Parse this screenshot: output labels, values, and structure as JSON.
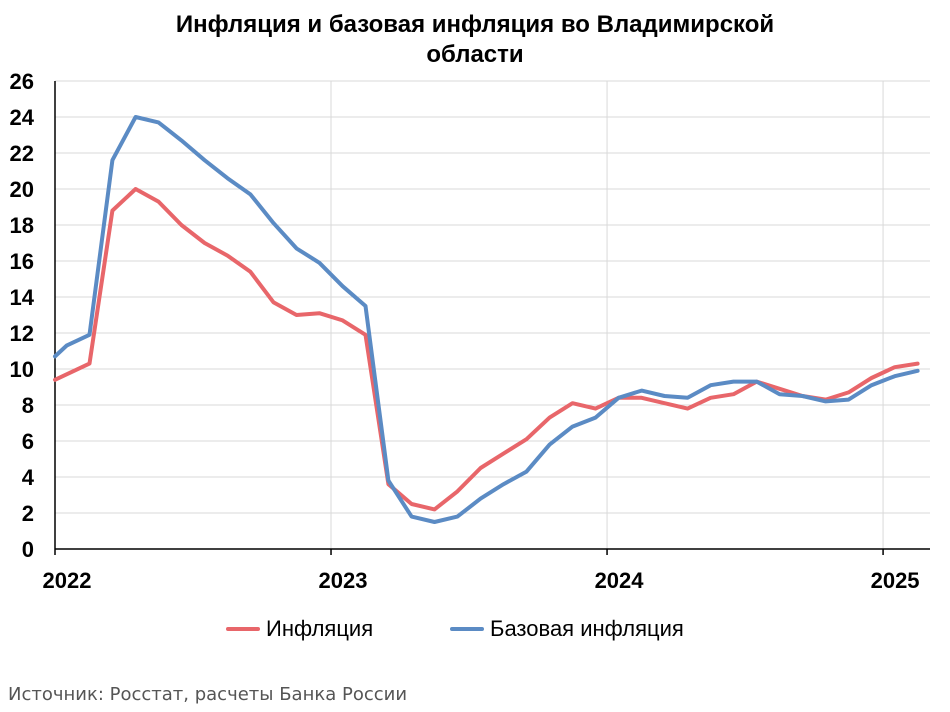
{
  "chart_data": {
    "type": "line",
    "title": "Инфляция и базовая инфляция во Владимирской области",
    "title_lines": [
      "Инфляция и базовая инфляция во Владимирской",
      "области"
    ],
    "ylim": [
      0,
      26
    ],
    "yticks": [
      "0",
      "2",
      "4",
      "6",
      "8",
      "10",
      "12",
      "14",
      "16",
      "18",
      "20",
      "22",
      "24",
      "26"
    ],
    "xlim": [
      2022.0,
      2025.17
    ],
    "xticks": [
      {
        "label": "2022",
        "value": 2022
      },
      {
        "label": "2023",
        "value": 2023
      },
      {
        "label": "2024",
        "value": 2024
      },
      {
        "label": "2025",
        "value": 2025
      }
    ],
    "grid": true,
    "legend_position": "bottom",
    "series": [
      {
        "name": "Инфляция",
        "color": "#e8666a",
        "x": [
          2022.0,
          2022.125,
          2022.208,
          2022.292,
          2022.375,
          2022.458,
          2022.542,
          2022.625,
          2022.708,
          2022.792,
          2022.875,
          2022.958,
          2023.042,
          2023.125,
          2023.208,
          2023.292,
          2023.375,
          2023.458,
          2023.542,
          2023.625,
          2023.708,
          2023.792,
          2023.875,
          2023.958,
          2024.042,
          2024.125,
          2024.208,
          2024.292,
          2024.375,
          2024.458,
          2024.542,
          2024.625,
          2024.708,
          2024.792,
          2024.875,
          2024.958,
          2025.042,
          2025.125
        ],
        "values": [
          9.4,
          10.3,
          18.8,
          20.0,
          19.3,
          18.0,
          17.0,
          16.3,
          15.4,
          13.7,
          13.0,
          13.1,
          12.7,
          11.9,
          3.6,
          2.5,
          2.2,
          3.2,
          4.5,
          5.3,
          6.1,
          7.3,
          8.1,
          7.8,
          8.4,
          8.4,
          8.1,
          7.8,
          8.4,
          8.6,
          9.3,
          8.9,
          8.5,
          8.3,
          8.7,
          9.5,
          10.1,
          10.3
        ]
      },
      {
        "name": "Базовая инфляция",
        "color": "#5b8bc4",
        "x": [
          2022.0,
          2022.042,
          2022.125,
          2022.208,
          2022.292,
          2022.375,
          2022.458,
          2022.542,
          2022.625,
          2022.708,
          2022.792,
          2022.875,
          2022.958,
          2023.042,
          2023.125,
          2023.208,
          2023.292,
          2023.375,
          2023.458,
          2023.542,
          2023.625,
          2023.708,
          2023.792,
          2023.875,
          2023.958,
          2024.042,
          2024.125,
          2024.208,
          2024.292,
          2024.375,
          2024.458,
          2024.542,
          2024.625,
          2024.708,
          2024.792,
          2024.875,
          2024.958,
          2025.042,
          2025.125
        ],
        "values": [
          10.7,
          11.3,
          11.9,
          21.6,
          24.0,
          23.7,
          22.7,
          21.6,
          20.6,
          19.7,
          18.1,
          16.7,
          15.9,
          14.6,
          13.5,
          3.8,
          1.8,
          1.5,
          1.8,
          2.8,
          3.6,
          4.3,
          5.8,
          6.8,
          7.3,
          8.4,
          8.8,
          8.5,
          8.4,
          9.1,
          9.3,
          9.3,
          8.6,
          8.5,
          8.2,
          8.3,
          9.1,
          9.6,
          9.9
        ]
      }
    ]
  },
  "source_text": "Источник: Росстат, расчеты Банка России"
}
